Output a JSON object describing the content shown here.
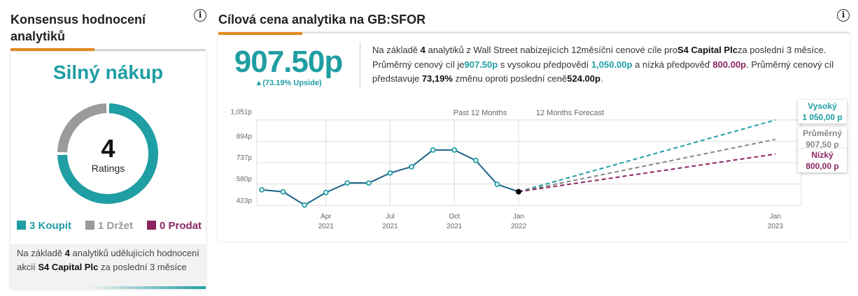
{
  "left": {
    "title": "Konsensus hodnocení analytiků",
    "rating": "Silný nákup",
    "count": "4",
    "count_label": "Ratings",
    "breakdown": [
      {
        "label": "3 Koupit",
        "value": 3,
        "color": "#1f9ea3"
      },
      {
        "label": "1 Držet",
        "value": 1,
        "color": "#9b9b9b"
      },
      {
        "label": "0 Prodat",
        "value": 0,
        "color": "#8b2562"
      }
    ],
    "footer": {
      "p1": "Na základě ",
      "n": "4",
      "p2": " analytiků udělujících hodnocení akcií ",
      "company": "S4 Capital Plc",
      "p3": " za poslední 3 měsíce"
    }
  },
  "right": {
    "title": "Cílová cena analytika na GB:SFOR",
    "price": "907.50p",
    "upside": "▲(73.19% Upside)",
    "desc": {
      "a": "Na základě ",
      "n": "4",
      "b": " analytiků z Wall Street nabízejících 12měsíční cenové cíle pro",
      "company": "S4 Capital Plc",
      "c": "za poslední 3 měsíce. Průměrný cenový cíl je",
      "avg": "907.50p",
      "d": " s vysokou předpovědí ",
      "high": "1,050.00p",
      "e": " a nízká předpověď ",
      "low": "800.00p",
      "f": ". Průměrný cenový cíl představuje ",
      "pct": "73,19%",
      "g": " změnu oproti poslední ceně",
      "last": "524.00p",
      "h": "."
    }
  },
  "colors": {
    "teal": "#1f9ea3",
    "orange": "#e38a1d",
    "line": "#1a5f8a",
    "purple": "#8b2562",
    "gray": "#888888"
  },
  "chart_data": {
    "type": "line",
    "section_labels": [
      "Past 12 Months",
      "12 Months Forecast"
    ],
    "y_ticks": [
      "1,051p",
      "894p",
      "737p",
      "580p",
      "423p"
    ],
    "y_tick_values": [
      1051,
      894,
      737,
      580,
      423
    ],
    "ylim": [
      423,
      1051
    ],
    "x_ticks": [
      {
        "month": "Apr",
        "year": "2021",
        "date": "2021-04"
      },
      {
        "month": "Jul",
        "year": "2021",
        "date": "2021-07"
      },
      {
        "month": "Oct",
        "year": "2021",
        "date": "2021-10"
      },
      {
        "month": "Jan",
        "year": "2022",
        "date": "2022-01"
      },
      {
        "month": "Jan",
        "year": "2023",
        "date": "2023-01"
      }
    ],
    "grid": true,
    "series": [
      {
        "x": [
          "2021-01",
          "2021-02",
          "2021-03",
          "2021-04",
          "2021-05",
          "2021-06",
          "2021-07",
          "2021-08",
          "2021-09",
          "2021-10",
          "2021-11",
          "2021-12",
          "2022-01"
        ],
        "values": [
          538,
          523,
          426,
          518,
          588,
          588,
          661,
          707,
          830,
          830,
          753,
          578,
          524
        ]
      }
    ],
    "forecast": [
      {
        "name": "Vysoký",
        "label": "1 050,00 p",
        "value": 1050,
        "color": "#1f9ea3"
      },
      {
        "name": "Průměrný",
        "label": "907,50 p",
        "value": 907.5,
        "color": "#888888"
      },
      {
        "name": "Nízký",
        "label": "800,00 p",
        "value": 800,
        "color": "#8b2562"
      }
    ],
    "forecast_from": {
      "x": "2022-01",
      "value": 524
    },
    "forecast_to": "2023-01"
  }
}
